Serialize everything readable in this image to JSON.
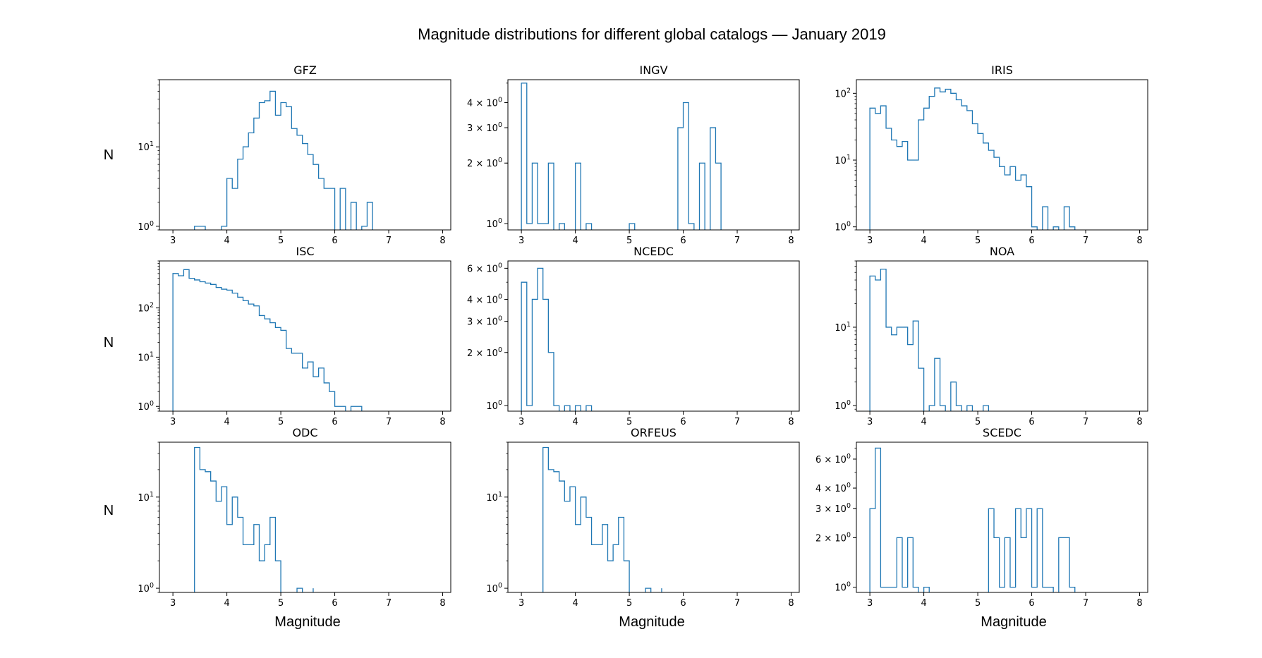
{
  "figure": {
    "title": "Magnitude distributions for different global catalogs — January 2019",
    "ylabel": "N",
    "xlabel": "Magnitude"
  },
  "chart_data": [
    {
      "type": "histogram-step",
      "title": "GFZ",
      "yscale": "log",
      "xlim": [
        2.75,
        8.15
      ],
      "ylim": [
        0.9,
        70
      ],
      "xticks": [
        3,
        4,
        5,
        6,
        7,
        8
      ],
      "yticks": [
        {
          "v": 1,
          "label": "10^0"
        },
        {
          "v": 10,
          "label": "10^1"
        }
      ],
      "edges": [
        3.4,
        3.5,
        3.6,
        3.7,
        3.8,
        3.9,
        4.0,
        4.1,
        4.2,
        4.3,
        4.4,
        4.5,
        4.6,
        4.7,
        4.8,
        4.9,
        5.0,
        5.1,
        5.2,
        5.3,
        5.4,
        5.5,
        5.6,
        5.7,
        5.8,
        5.9,
        6.0,
        6.1,
        6.2,
        6.3,
        6.4,
        6.5,
        6.6,
        6.7,
        6.8
      ],
      "counts": [
        1,
        1,
        0,
        0,
        0,
        1,
        4,
        3,
        7,
        10,
        15,
        23,
        36,
        38,
        50,
        25,
        36,
        32,
        17,
        14,
        11,
        8,
        6,
        4,
        3,
        3,
        0,
        3,
        0,
        2,
        0,
        1,
        2,
        0
      ]
    },
    {
      "type": "histogram-step",
      "title": "INGV",
      "yscale": "log",
      "xlim": [
        2.75,
        8.15
      ],
      "ylim": [
        0.93,
        5.2
      ],
      "xticks": [
        3,
        4,
        5,
        6,
        7,
        8
      ],
      "yticks": [
        {
          "v": 1,
          "label": "10^0"
        },
        {
          "v": 2,
          "label": "2 × 10^0"
        },
        {
          "v": 3,
          "label": "3 × 10^0"
        },
        {
          "v": 4,
          "label": "4 × 10^0"
        }
      ],
      "edges": [
        3.0,
        3.1,
        3.2,
        3.3,
        3.4,
        3.5,
        3.6,
        3.7,
        3.8,
        3.9,
        4.0,
        4.1,
        4.2,
        4.3,
        4.4,
        4.5,
        4.6,
        4.7,
        4.8,
        4.9,
        5.0,
        5.1,
        5.2,
        5.3,
        5.4,
        5.5,
        5.6,
        5.7,
        5.8,
        5.9,
        6.0,
        6.1,
        6.2,
        6.3,
        6.4,
        6.5,
        6.6,
        6.7
      ],
      "counts": [
        5,
        1,
        2,
        1,
        1,
        2,
        0,
        1,
        0,
        0,
        2,
        0,
        1,
        0,
        0,
        0,
        0,
        0,
        0,
        0,
        1,
        0,
        0,
        0,
        0,
        0,
        0,
        0,
        0,
        3,
        4,
        1,
        0,
        2,
        0,
        3,
        2
      ]
    },
    {
      "type": "histogram-step",
      "title": "IRIS",
      "yscale": "log",
      "xlim": [
        2.75,
        8.15
      ],
      "ylim": [
        0.9,
        160
      ],
      "xticks": [
        3,
        4,
        5,
        6,
        7,
        8
      ],
      "yticks": [
        {
          "v": 1,
          "label": "10^0"
        },
        {
          "v": 10,
          "label": "10^1"
        },
        {
          "v": 100,
          "label": "10^2"
        }
      ],
      "edges": [
        3.0,
        3.1,
        3.2,
        3.3,
        3.4,
        3.5,
        3.6,
        3.7,
        3.8,
        3.9,
        4.0,
        4.1,
        4.2,
        4.3,
        4.4,
        4.5,
        4.6,
        4.7,
        4.8,
        4.9,
        5.0,
        5.1,
        5.2,
        5.3,
        5.4,
        5.5,
        5.6,
        5.7,
        5.8,
        5.9,
        6.0,
        6.1,
        6.2,
        6.3,
        6.4,
        6.5,
        6.6,
        6.7,
        6.8
      ],
      "counts": [
        60,
        50,
        65,
        30,
        20,
        16,
        19,
        10,
        10,
        40,
        60,
        90,
        120,
        105,
        115,
        100,
        80,
        65,
        55,
        35,
        25,
        18,
        14,
        11,
        8,
        6,
        8,
        5,
        6,
        4,
        1,
        0,
        2,
        0,
        1,
        0,
        2,
        1
      ]
    },
    {
      "type": "histogram-step",
      "title": "ISC",
      "yscale": "log",
      "xlim": [
        2.75,
        8.15
      ],
      "ylim": [
        0.8,
        900
      ],
      "xticks": [
        3,
        4,
        5,
        6,
        7,
        8
      ],
      "yticks": [
        {
          "v": 1,
          "label": "10^0"
        },
        {
          "v": 10,
          "label": "10^1"
        },
        {
          "v": 100,
          "label": "10^2"
        }
      ],
      "edges": [
        3.0,
        3.1,
        3.2,
        3.3,
        3.4,
        3.5,
        3.6,
        3.7,
        3.8,
        3.9,
        4.0,
        4.1,
        4.2,
        4.3,
        4.4,
        4.5,
        4.6,
        4.7,
        4.8,
        4.9,
        5.0,
        5.1,
        5.2,
        5.3,
        5.4,
        5.5,
        5.6,
        5.7,
        5.8,
        5.9,
        6.0,
        6.1,
        6.2,
        6.3,
        6.4,
        6.5,
        6.6
      ],
      "counts": [
        500,
        450,
        600,
        400,
        370,
        340,
        320,
        300,
        260,
        240,
        230,
        200,
        165,
        140,
        120,
        110,
        70,
        60,
        50,
        40,
        35,
        15,
        12,
        12,
        6,
        8,
        4,
        6,
        3,
        2,
        1,
        1,
        0,
        1,
        1,
        0
      ]
    },
    {
      "type": "histogram-step",
      "title": "NCEDC",
      "yscale": "log",
      "xlim": [
        2.75,
        8.15
      ],
      "ylim": [
        0.93,
        6.6
      ],
      "xticks": [
        3,
        4,
        5,
        6,
        7,
        8
      ],
      "yticks": [
        {
          "v": 1,
          "label": "10^0"
        },
        {
          "v": 2,
          "label": "2 × 10^0"
        },
        {
          "v": 3,
          "label": "3 × 10^0"
        },
        {
          "v": 4,
          "label": "4 × 10^0"
        },
        {
          "v": 6,
          "label": "6 × 10^0"
        }
      ],
      "edges": [
        3.0,
        3.1,
        3.2,
        3.3,
        3.4,
        3.5,
        3.6,
        3.7,
        3.8,
        3.9,
        4.0,
        4.1,
        4.2,
        4.3
      ],
      "counts": [
        5,
        1,
        4,
        6,
        4,
        2,
        1,
        0,
        1,
        0,
        1,
        0,
        1
      ]
    },
    {
      "type": "histogram-step",
      "title": "NOA",
      "yscale": "log",
      "xlim": [
        2.75,
        8.15
      ],
      "ylim": [
        0.85,
        70
      ],
      "xticks": [
        3,
        4,
        5,
        6,
        7,
        8
      ],
      "yticks": [
        {
          "v": 1,
          "label": "10^0"
        },
        {
          "v": 10,
          "label": "10^1"
        }
      ],
      "edges": [
        3.0,
        3.1,
        3.2,
        3.3,
        3.4,
        3.5,
        3.6,
        3.7,
        3.8,
        3.9,
        4.0,
        4.1,
        4.2,
        4.3,
        4.4,
        4.5,
        4.6,
        4.7,
        4.8,
        4.9,
        5.0,
        5.1,
        5.2
      ],
      "counts": [
        45,
        40,
        55,
        10,
        8,
        10,
        10,
        6,
        12,
        3,
        0,
        1,
        4,
        1,
        0,
        2,
        1,
        0,
        1,
        0,
        0,
        1
      ]
    },
    {
      "type": "histogram-step",
      "title": "ODC",
      "yscale": "log",
      "xlim": [
        2.75,
        8.15
      ],
      "ylim": [
        0.9,
        40
      ],
      "xticks": [
        3,
        4,
        5,
        6,
        7,
        8
      ],
      "yticks": [
        {
          "v": 1,
          "label": "10^0"
        },
        {
          "v": 10,
          "label": "10^1"
        }
      ],
      "edges": [
        3.4,
        3.5,
        3.6,
        3.7,
        3.8,
        3.9,
        4.0,
        4.1,
        4.2,
        4.3,
        4.4,
        4.5,
        4.6,
        4.7,
        4.8,
        4.9,
        5.0,
        5.1,
        5.2,
        5.3,
        5.4,
        5.5,
        5.6
      ],
      "counts": [
        35,
        20,
        19,
        15,
        9,
        13,
        5,
        10,
        6,
        3,
        3,
        5,
        2,
        3,
        6,
        2,
        0,
        0,
        0,
        1,
        0,
        0,
        1
      ]
    },
    {
      "type": "histogram-step",
      "title": "ORFEUS",
      "yscale": "log",
      "xlim": [
        2.75,
        8.15
      ],
      "ylim": [
        0.9,
        40
      ],
      "xticks": [
        3,
        4,
        5,
        6,
        7,
        8
      ],
      "yticks": [
        {
          "v": 1,
          "label": "10^0"
        },
        {
          "v": 10,
          "label": "10^1"
        }
      ],
      "edges": [
        3.4,
        3.5,
        3.6,
        3.7,
        3.8,
        3.9,
        4.0,
        4.1,
        4.2,
        4.3,
        4.4,
        4.5,
        4.6,
        4.7,
        4.8,
        4.9,
        5.0,
        5.1,
        5.2,
        5.3,
        5.4,
        5.5,
        5.6
      ],
      "counts": [
        35,
        20,
        19,
        15,
        9,
        13,
        5,
        10,
        6,
        3,
        3,
        5,
        2,
        3,
        6,
        2,
        0,
        0,
        0,
        1,
        0,
        0,
        1
      ]
    },
    {
      "type": "histogram-step",
      "title": "SCEDC",
      "yscale": "log",
      "xlim": [
        2.75,
        8.15
      ],
      "ylim": [
        0.93,
        7.6
      ],
      "xticks": [
        3,
        4,
        5,
        6,
        7,
        8
      ],
      "yticks": [
        {
          "v": 1,
          "label": "10^0"
        },
        {
          "v": 2,
          "label": "2 × 10^0"
        },
        {
          "v": 3,
          "label": "3 × 10^0"
        },
        {
          "v": 4,
          "label": "4 × 10^0"
        },
        {
          "v": 6,
          "label": "6 × 10^0"
        }
      ],
      "edges": [
        3.0,
        3.1,
        3.2,
        3.3,
        3.4,
        3.5,
        3.6,
        3.7,
        3.8,
        3.9,
        4.0,
        4.1,
        4.2,
        4.3,
        4.4,
        4.5,
        4.6,
        4.7,
        4.8,
        4.9,
        5.0,
        5.1,
        5.2,
        5.3,
        5.4,
        5.5,
        5.6,
        5.7,
        5.8,
        5.9,
        6.0,
        6.1,
        6.2,
        6.3,
        6.4,
        6.5,
        6.6,
        6.7,
        6.8
      ],
      "counts": [
        3,
        7,
        1,
        1,
        1,
        2,
        1,
        2,
        1,
        0,
        1,
        0,
        0,
        0,
        0,
        0,
        0,
        0,
        0,
        0,
        0,
        0,
        3,
        2,
        1,
        2,
        1,
        3,
        2,
        3,
        1,
        3,
        1,
        1,
        0,
        2,
        2,
        1
      ]
    }
  ],
  "colors": {
    "line": "#1f77b4",
    "axes": "#000000",
    "background": "#ffffff"
  }
}
